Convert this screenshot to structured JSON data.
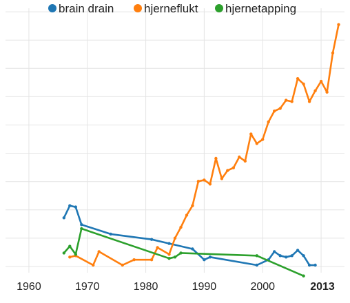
{
  "chart_data": {
    "type": "line",
    "title": "",
    "xlabel": "",
    "ylabel": "",
    "xlim": [
      1956,
      2014
    ],
    "ylim": [
      0,
      9.4
    ],
    "grid": true,
    "legend_position": "top",
    "x_ticks": [
      "1960",
      "1970",
      "1980",
      "1990",
      "2000"
    ],
    "x_ticks_bold": [
      "2013"
    ],
    "series": [
      {
        "name": "brain drain",
        "color": "#1f77b4",
        "points": [
          [
            1966,
            1.8
          ],
          [
            1967,
            2.25
          ],
          [
            1968,
            2.2
          ],
          [
            1969,
            1.55
          ],
          [
            1974,
            1.2
          ],
          [
            1981,
            1.0
          ],
          [
            1984,
            0.85
          ],
          [
            1988,
            0.65
          ],
          [
            1990,
            0.25
          ],
          [
            1991,
            0.35
          ],
          [
            1999,
            0.05
          ],
          [
            2001,
            0.25
          ],
          [
            2002,
            0.55
          ],
          [
            2003,
            0.4
          ],
          [
            2004,
            0.35
          ],
          [
            2005,
            0.4
          ],
          [
            2006,
            0.6
          ],
          [
            2007,
            0.4
          ],
          [
            2008,
            0.05
          ],
          [
            2009,
            0.05
          ]
        ]
      },
      {
        "name": "hjerneflukt",
        "color": "#ff7f0e",
        "points": [
          [
            1967,
            0.35
          ],
          [
            1968,
            0.4
          ],
          [
            1971,
            0.05
          ],
          [
            1972,
            0.55
          ],
          [
            1976,
            0.05
          ],
          [
            1978,
            0.25
          ],
          [
            1981,
            0.25
          ],
          [
            1982,
            0.7
          ],
          [
            1984,
            0.45
          ],
          [
            1985,
            1.05
          ],
          [
            1986,
            1.45
          ],
          [
            1987,
            1.9
          ],
          [
            1988,
            2.25
          ],
          [
            1989,
            3.15
          ],
          [
            1990,
            3.2
          ],
          [
            1991,
            3.05
          ],
          [
            1992,
            4.0
          ],
          [
            1993,
            3.25
          ],
          [
            1994,
            3.55
          ],
          [
            1995,
            3.65
          ],
          [
            1996,
            4.05
          ],
          [
            1997,
            3.9
          ],
          [
            1998,
            4.9
          ],
          [
            1999,
            4.55
          ],
          [
            2000,
            4.7
          ],
          [
            2001,
            5.35
          ],
          [
            2002,
            5.75
          ],
          [
            2003,
            5.85
          ],
          [
            2004,
            6.15
          ],
          [
            2005,
            6.1
          ],
          [
            2006,
            6.95
          ],
          [
            2007,
            6.75
          ],
          [
            2008,
            6.1
          ],
          [
            2009,
            6.5
          ],
          [
            2010,
            6.85
          ],
          [
            2011,
            6.45
          ],
          [
            2012,
            7.9
          ],
          [
            2013,
            8.95
          ]
        ]
      },
      {
        "name": "hjernetapping",
        "color": "#2ca02c",
        "points": [
          [
            1966,
            0.5
          ],
          [
            1967,
            0.75
          ],
          [
            1968,
            0.45
          ],
          [
            1969,
            1.4
          ],
          [
            1984,
            0.3
          ],
          [
            1985,
            0.35
          ],
          [
            1986,
            0.5
          ],
          [
            1999,
            0.4
          ],
          [
            2007,
            -0.35
          ]
        ]
      }
    ]
  }
}
